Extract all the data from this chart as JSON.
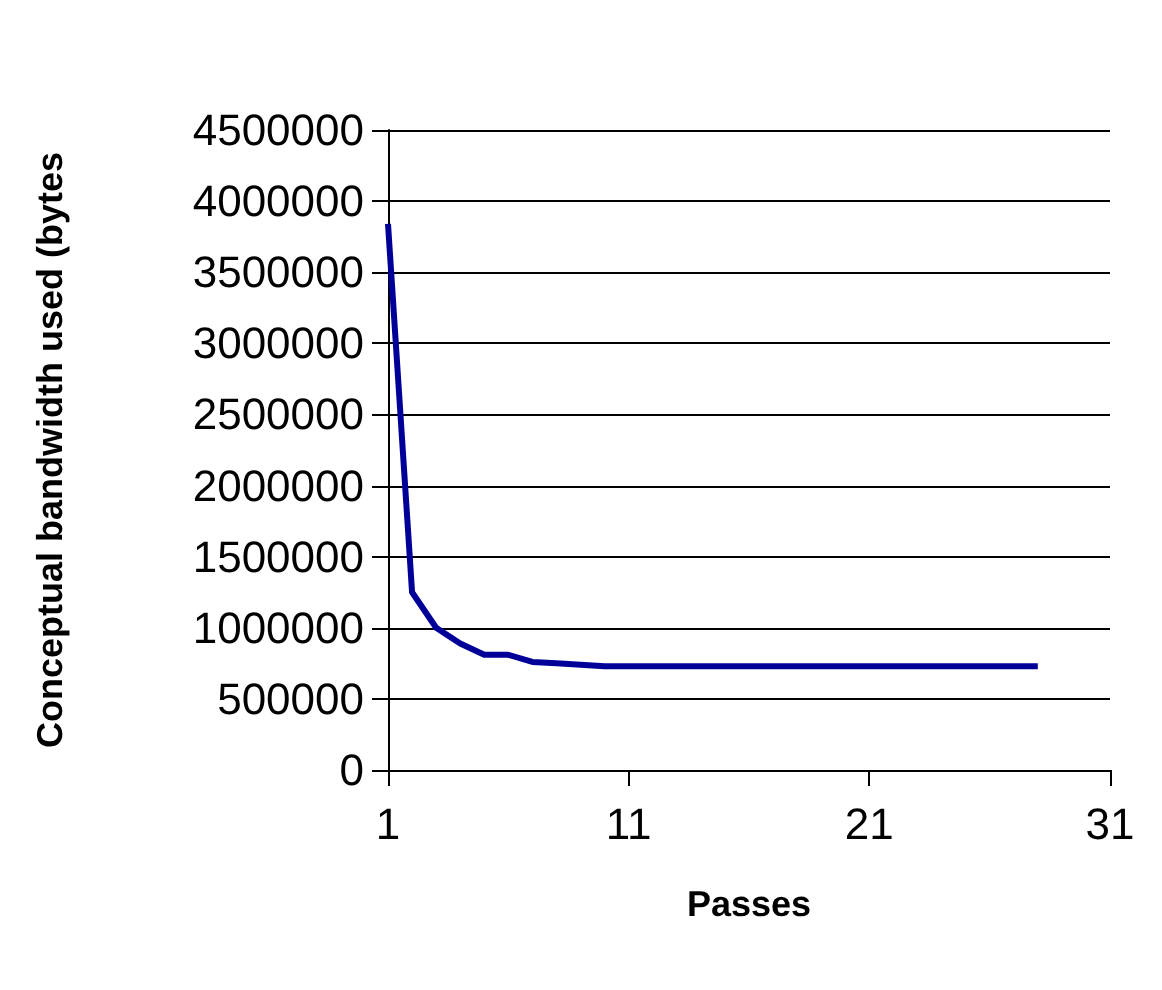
{
  "chart_data": {
    "type": "line",
    "xlabel": "Passes",
    "ylabel": "Conceptual bandwidth used (bytes",
    "x": [
      1,
      2,
      3,
      4,
      5,
      6,
      7,
      8,
      9,
      10,
      11,
      12,
      13,
      14,
      15,
      16,
      17,
      18,
      19,
      20,
      21,
      22,
      23,
      24,
      25,
      26,
      27,
      28
    ],
    "series": [
      {
        "color": "#000099",
        "values": [
          3840000,
          1250000,
          1000000,
          890000,
          810000,
          810000,
          760000,
          750000,
          740000,
          730000,
          730000,
          730000,
          730000,
          730000,
          730000,
          730000,
          730000,
          730000,
          730000,
          730000,
          730000,
          730000,
          730000,
          730000,
          730000,
          730000,
          730000,
          730000
        ]
      }
    ],
    "xlim": [
      1,
      31
    ],
    "xticks": [
      1,
      11,
      21,
      31
    ],
    "ylim": [
      0,
      4500000
    ],
    "yticks": [
      0,
      500000,
      1000000,
      1500000,
      2000000,
      2500000,
      3000000,
      3500000,
      4000000,
      4500000
    ],
    "grid": "y",
    "marker": "none",
    "line_style": "solid"
  }
}
